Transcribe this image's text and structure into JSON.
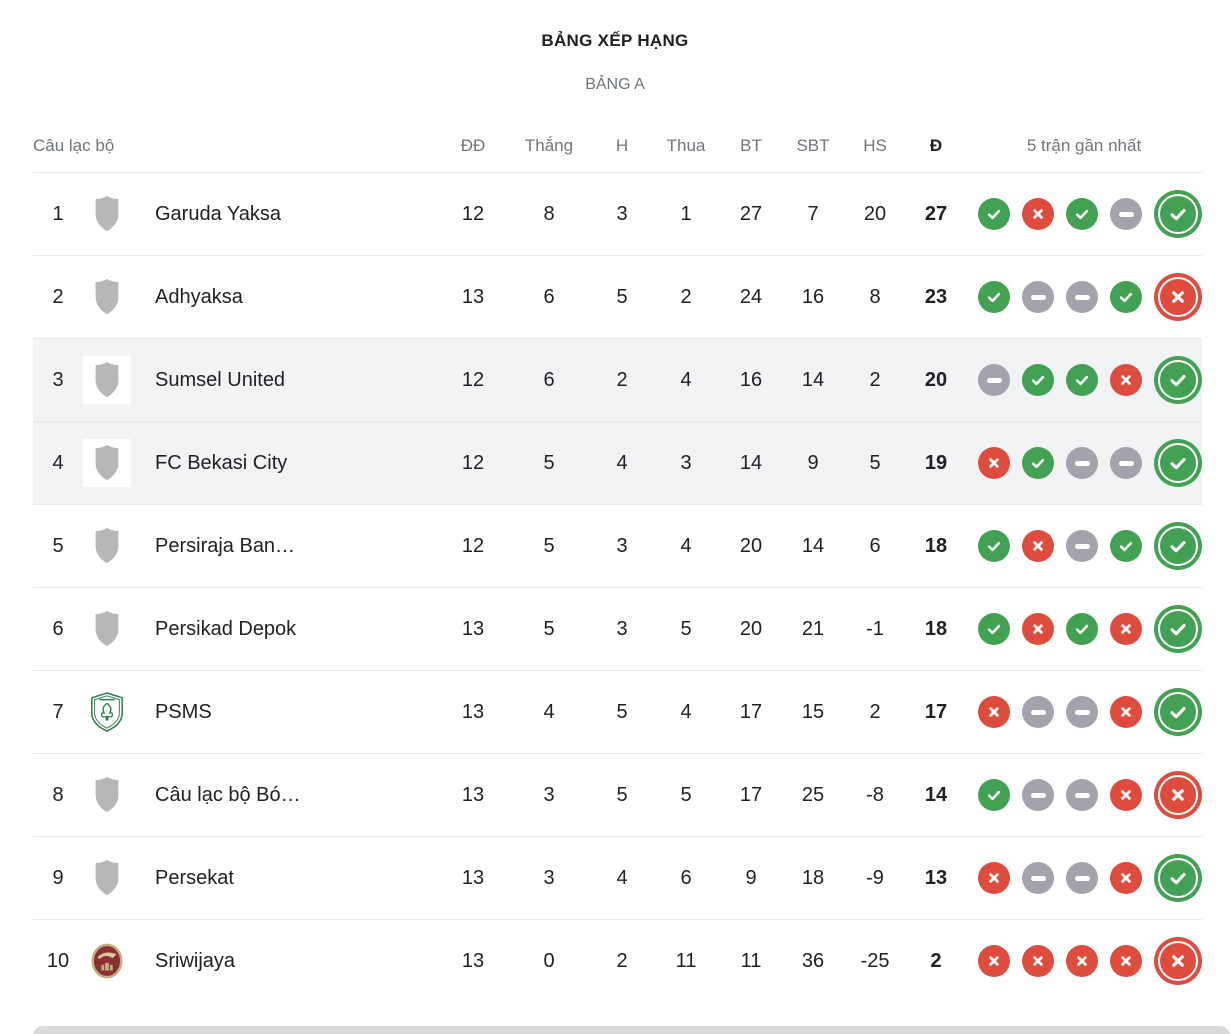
{
  "header": {
    "title": "BẢNG XẾP HẠNG",
    "subtitle": "BẢNG A"
  },
  "columns": {
    "club": "Câu lạc bộ",
    "played": "ĐĐ",
    "won": "Thắng",
    "drawn": "H",
    "lost": "Thua",
    "goals_for": "BT",
    "goals_against": "SBT",
    "goal_diff": "HS",
    "points": "Đ",
    "form": "5 trận gần nhất"
  },
  "colors": {
    "win": "#42a152",
    "loss": "#de4c3e",
    "draw": "#a3a3ad",
    "highlight": "#f1f3f4",
    "divider": "#e8e8e8",
    "text": "#202124",
    "muted": "#70757a"
  },
  "form_legend": {
    "W": "win-check",
    "L": "loss-x",
    "D": "draw-dash",
    "latest_has_ring": true
  },
  "rows": [
    {
      "rank": "1",
      "team": "Garuda Yaksa",
      "badge": "generic-shield",
      "played": "12",
      "won": "8",
      "drawn": "3",
      "lost": "1",
      "goals_for": "27",
      "goals_against": "7",
      "goal_diff": "20",
      "points": "27",
      "form": [
        "W",
        "L",
        "W",
        "D",
        "W"
      ],
      "highlighted": false
    },
    {
      "rank": "2",
      "team": "Adhyaksa",
      "badge": "generic-shield",
      "played": "13",
      "won": "6",
      "drawn": "5",
      "lost": "2",
      "goals_for": "24",
      "goals_against": "16",
      "goal_diff": "8",
      "points": "23",
      "form": [
        "W",
        "D",
        "D",
        "W",
        "L"
      ],
      "highlighted": false
    },
    {
      "rank": "3",
      "team": "Sumsel United",
      "badge": "generic-shield",
      "played": "12",
      "won": "6",
      "drawn": "2",
      "lost": "4",
      "goals_for": "16",
      "goals_against": "14",
      "goal_diff": "2",
      "points": "20",
      "form": [
        "D",
        "W",
        "W",
        "L",
        "W"
      ],
      "highlighted": true
    },
    {
      "rank": "4",
      "team": "FC Bekasi City",
      "badge": "generic-shield",
      "played": "12",
      "won": "5",
      "drawn": "4",
      "lost": "3",
      "goals_for": "14",
      "goals_against": "9",
      "goal_diff": "5",
      "points": "19",
      "form": [
        "L",
        "W",
        "D",
        "D",
        "W"
      ],
      "highlighted": true
    },
    {
      "rank": "5",
      "team": "Persiraja Ban…",
      "badge": "generic-shield",
      "played": "12",
      "won": "5",
      "drawn": "3",
      "lost": "4",
      "goals_for": "20",
      "goals_against": "14",
      "goal_diff": "6",
      "points": "18",
      "form": [
        "W",
        "L",
        "D",
        "W",
        "W"
      ],
      "highlighted": false
    },
    {
      "rank": "6",
      "team": "Persikad Depok",
      "badge": "generic-shield",
      "played": "13",
      "won": "5",
      "drawn": "3",
      "lost": "5",
      "goals_for": "20",
      "goals_against": "21",
      "goal_diff": "-1",
      "points": "18",
      "form": [
        "W",
        "L",
        "W",
        "L",
        "W"
      ],
      "highlighted": false
    },
    {
      "rank": "7",
      "team": "PSMS",
      "badge": "psms-crest",
      "played": "13",
      "won": "4",
      "drawn": "5",
      "lost": "4",
      "goals_for": "17",
      "goals_against": "15",
      "goal_diff": "2",
      "points": "17",
      "form": [
        "L",
        "D",
        "D",
        "L",
        "W"
      ],
      "highlighted": false
    },
    {
      "rank": "8",
      "team": "Câu lạc bộ Bó…",
      "badge": "generic-shield",
      "played": "13",
      "won": "3",
      "drawn": "5",
      "lost": "5",
      "goals_for": "17",
      "goals_against": "25",
      "goal_diff": "-8",
      "points": "14",
      "form": [
        "W",
        "D",
        "D",
        "L",
        "L"
      ],
      "highlighted": false
    },
    {
      "rank": "9",
      "team": "Persekat",
      "badge": "generic-shield",
      "played": "13",
      "won": "3",
      "drawn": "4",
      "lost": "6",
      "goals_for": "9",
      "goals_against": "18",
      "goal_diff": "-9",
      "points": "13",
      "form": [
        "L",
        "D",
        "D",
        "L",
        "W"
      ],
      "highlighted": false
    },
    {
      "rank": "10",
      "team": "Sriwijaya",
      "badge": "sriwijaya-crest",
      "played": "13",
      "won": "0",
      "drawn": "2",
      "lost": "11",
      "goals_for": "11",
      "goals_against": "36",
      "goal_diff": "-25",
      "points": "2",
      "form": [
        "L",
        "L",
        "L",
        "L",
        "L"
      ],
      "highlighted": false
    }
  ]
}
